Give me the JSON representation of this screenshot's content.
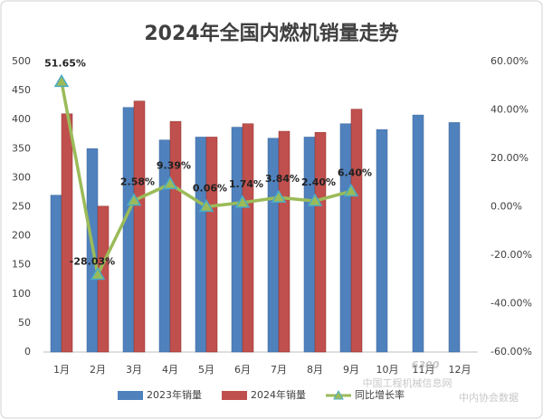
{
  "chart_data": {
    "type": "bar",
    "title": "2024年全国内燃机销量走势",
    "categories": [
      "1月",
      "2月",
      "3月",
      "4月",
      "5月",
      "6月",
      "7月",
      "8月",
      "9月",
      "10月",
      "11月",
      "12月"
    ],
    "series": [
      {
        "name": "2023年销量",
        "type": "bar",
        "color": "#4f81bd",
        "values": [
          270,
          350,
          421,
          365,
          370,
          387,
          368,
          370,
          393,
          383,
          408,
          395
        ]
      },
      {
        "name": "2024年销量",
        "type": "bar",
        "color": "#c0504d",
        "values": [
          410,
          251,
          432,
          397,
          370,
          393,
          380,
          378,
          418,
          null,
          null,
          null
        ]
      },
      {
        "name": "同比增长率",
        "type": "line",
        "axis": "y2",
        "color": "#9bbb59",
        "marker_color": "#4bacc6",
        "values": [
          51.65,
          -28.03,
          2.58,
          9.39,
          0.06,
          1.74,
          3.84,
          2.4,
          6.4,
          null,
          null,
          null
        ],
        "value_labels": [
          "51.65%",
          "-28.03%",
          "2.58%",
          "9.39%",
          "0.06%",
          "1.74%",
          "3.84%",
          "2.40%",
          "6.40%",
          null,
          null,
          null
        ]
      }
    ],
    "ylim": [
      0,
      500
    ],
    "yticks": [
      0,
      50,
      100,
      150,
      200,
      250,
      300,
      350,
      400,
      450,
      500
    ],
    "y2lim": [
      -60,
      60
    ],
    "y2ticks": [
      {
        "value": -60,
        "label": "-60.00%"
      },
      {
        "value": -40,
        "label": "-40.00%"
      },
      {
        "value": -20,
        "label": "-20.00%"
      },
      {
        "value": 0,
        "label": "0.00%"
      },
      {
        "value": 20,
        "label": "20.00%"
      },
      {
        "value": 40,
        "label": "40.00%"
      },
      {
        "value": 60,
        "label": "60.00%"
      }
    ],
    "grid": false,
    "legend": "bottom",
    "watermark": [
      "6300",
      "中国工程机械信息网",
      "中内协会数据"
    ]
  }
}
